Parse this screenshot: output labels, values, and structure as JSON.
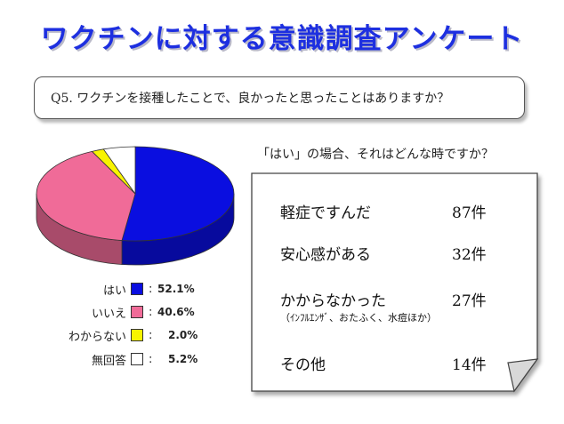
{
  "title": "ワクチンに対する意識調査アンケート",
  "question": "Q5.  ワクチンを接種したことで、良かったと思ったことはありますか？",
  "subheading": "「はい」の場合、それはどんな時ですか？",
  "legend": [
    {
      "label": "はい",
      "colon": ":",
      "value": "52.1%",
      "color": "#0a0ee0"
    },
    {
      "label": "いいえ",
      "colon": ":",
      "value": "40.6%",
      "color": "#f06b98"
    },
    {
      "label": "わからない",
      "colon": ":",
      "value": "2.0%",
      "color": "#f8f400"
    },
    {
      "label": "無回答",
      "colon": ":",
      "value": "5.2%",
      "color": "#ffffff"
    }
  ],
  "answers": [
    {
      "label": "軽症ですんだ",
      "count": "87件"
    },
    {
      "label": "安心感がある",
      "count": "32件"
    },
    {
      "label": "かからなかった",
      "count": "27件",
      "note": "（ｲﾝﾌﾙｴﾝｻﾞ、おたふく、水痘ほか）"
    },
    {
      "label": "その他",
      "count": "14件"
    }
  ],
  "chart_data": {
    "type": "pie",
    "categories": [
      "はい",
      "いいえ",
      "わからない",
      "無回答"
    ],
    "values": [
      52.1,
      40.6,
      2.0,
      5.2
    ],
    "colors": [
      "#0a0ee0",
      "#f06b98",
      "#f8f400",
      "#ffffff"
    ]
  }
}
